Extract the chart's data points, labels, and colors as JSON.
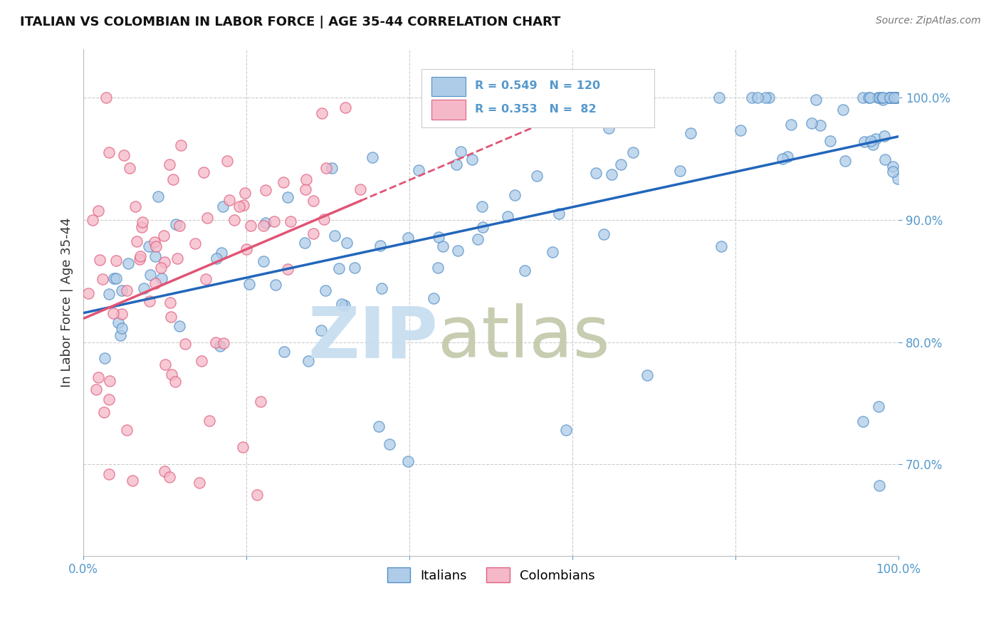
{
  "title": "ITALIAN VS COLOMBIAN IN LABOR FORCE | AGE 35-44 CORRELATION CHART",
  "source": "Source: ZipAtlas.com",
  "ylabel": "In Labor Force | Age 35-44",
  "xlim": [
    0.0,
    1.0
  ],
  "ylim": [
    0.625,
    1.04
  ],
  "ytick_positions": [
    0.7,
    0.8,
    0.9,
    1.0
  ],
  "yticklabels": [
    "70.0%",
    "80.0%",
    "90.0%",
    "100.0%"
  ],
  "R_italian": 0.549,
  "N_italian": 120,
  "R_colombian": 0.353,
  "N_colombian": 82,
  "color_italian": "#aecce8",
  "color_colombian": "#f5b8c8",
  "edge_italian": "#5590c8",
  "edge_colombian": "#e06080",
  "line_color_italian": "#2266bb",
  "line_color_colombian": "#e05575",
  "background_color": "#ffffff",
  "grid_color": "#cccccc",
  "tick_color": "#5599cc",
  "watermark_zip_color": "#c5ddf0",
  "watermark_atlas_color": "#c0c8a8",
  "marker_size": 120,
  "marker_linewidth": 1.0
}
